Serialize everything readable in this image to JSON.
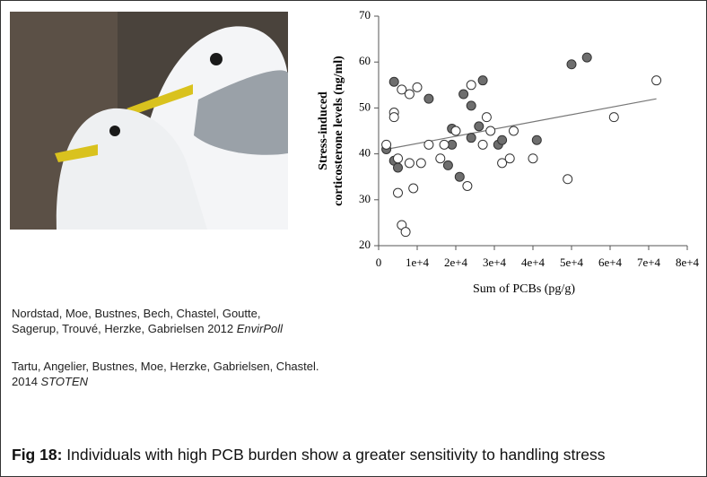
{
  "chart_data": {
    "type": "scatter",
    "y_label_lines": [
      "Stress-induced",
      "corticosterone levels (ng/ml)"
    ],
    "x_label": "Sum of PCBs (pg/g)",
    "xlim": [
      0,
      80000
    ],
    "ylim": [
      20,
      70
    ],
    "xticks": [
      0,
      {
        "value": 10000,
        "label": "1e+4"
      },
      {
        "value": 20000,
        "label": "2e+4"
      },
      {
        "value": 30000,
        "label": "3e+4"
      },
      {
        "value": 40000,
        "label": "4e+4"
      },
      {
        "value": 50000,
        "label": "5e+4"
      },
      {
        "value": 60000,
        "label": "6e+4"
      },
      {
        "value": 70000,
        "label": "7e+4"
      },
      {
        "value": 80000,
        "label": "8e+4"
      }
    ],
    "yticks": [
      20,
      30,
      40,
      50,
      60,
      70
    ],
    "series": [
      {
        "color": "#6e6e6e",
        "filled": true,
        "x": [
          4000,
          2000,
          4000,
          5000,
          13000,
          19000,
          19000,
          18000,
          22000,
          21000,
          24000,
          24000,
          26000,
          27000,
          31000,
          32000,
          41000,
          50000,
          54000
        ],
        "y": [
          55.7,
          41,
          38.5,
          37,
          52,
          45.5,
          42,
          37.5,
          53,
          35,
          50.5,
          43.5,
          46,
          56,
          42,
          43,
          43,
          59.5,
          61
        ]
      },
      {
        "color": "#ffffff",
        "filled": false,
        "x": [
          2000,
          4000,
          4000,
          5000,
          5000,
          6000,
          6000,
          7000,
          8000,
          8000,
          9000,
          10000,
          11000,
          13000,
          17000,
          20000,
          23000,
          24000,
          28000,
          29000,
          32000,
          34000,
          35000,
          40000,
          49000,
          61000,
          72000,
          16000,
          27000
        ],
        "y": [
          42,
          49,
          48,
          39,
          31.5,
          54,
          24.5,
          23,
          38,
          53,
          32.5,
          54.5,
          38,
          42,
          42,
          45,
          33,
          55,
          48,
          45,
          38,
          39,
          45,
          39,
          34.5,
          48,
          56,
          39,
          42
        ]
      }
    ],
    "trend_line": {
      "x": [
        2000,
        72000
      ],
      "y": [
        41,
        52
      ]
    }
  },
  "references": [
    {
      "lines": [
        "Nordstad, Moe, Bustnes, Bech, Chastel, Goutte,",
        "Sagerup, Trouvé, Herzke, Gabrielsen  2012"
      ],
      "journal": "EnvirPoll"
    },
    {
      "lines": [
        "Tartu, Angelier, Bustnes, Moe, Herzke,  Gabrielsen, Chastel.",
        "2014"
      ],
      "journal": "STOTEN"
    }
  ],
  "caption": {
    "label": "Fig 18:",
    "text": "Individuals with high PCB burden show a greater sensitivity to handling stress"
  }
}
